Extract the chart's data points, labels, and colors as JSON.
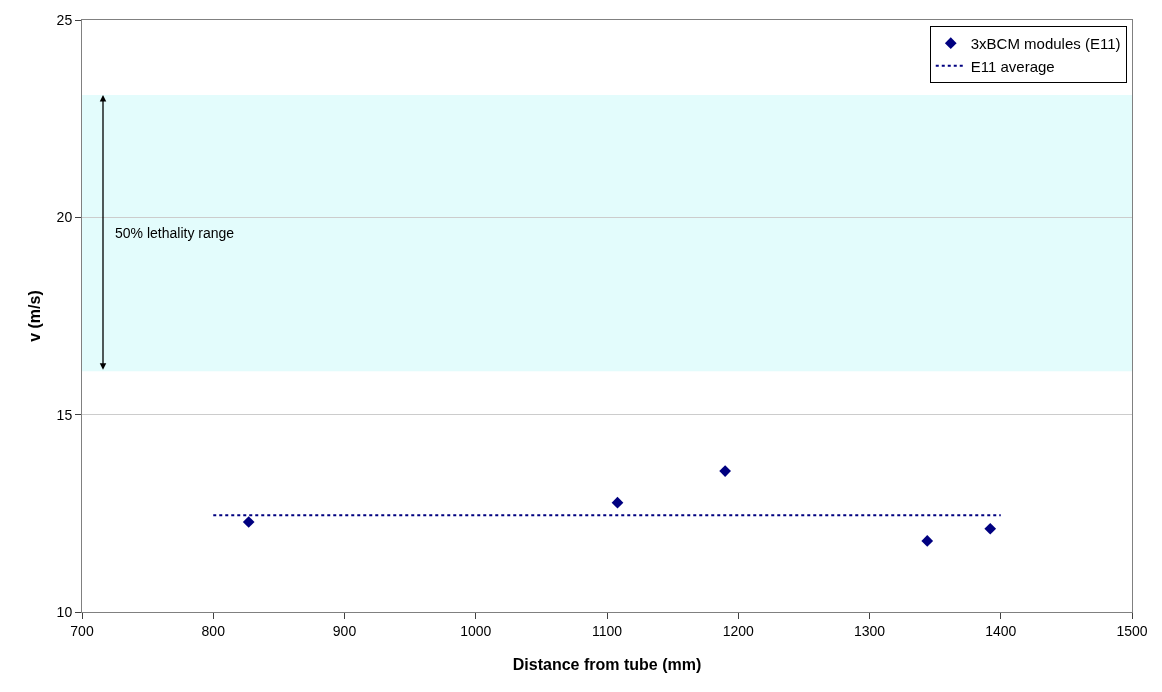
{
  "chart_data": {
    "type": "scatter",
    "xlabel": "Distance from tube (mm)",
    "ylabel": "v (m/s)",
    "xlim": [
      700,
      1500
    ],
    "xticks": [
      700,
      800,
      900,
      1000,
      1100,
      1200,
      1300,
      1400,
      1500
    ],
    "ylim": [
      10,
      25
    ],
    "yticks": [
      10,
      15,
      20,
      25
    ],
    "grid": "y",
    "legend": "top right",
    "series": [
      {
        "name": "3xBCM modules (E11)",
        "color": "#000080",
        "marker": "diamond",
        "x": [
          827,
          1108,
          1190,
          1344,
          1392
        ],
        "values": [
          12.28,
          12.77,
          13.57,
          11.8,
          12.11
        ]
      },
      {
        "name": "E11 average",
        "color": "#000080",
        "type": "line",
        "line_style": "dotted",
        "marker": "none",
        "x": [
          800,
          1400
        ],
        "values": [
          12.45,
          12.45
        ]
      }
    ],
    "bands": [
      {
        "axis": "y",
        "from": 16.1,
        "to": 23.1,
        "label": "50% lethality range",
        "color": "#e3fcfc"
      }
    ]
  }
}
